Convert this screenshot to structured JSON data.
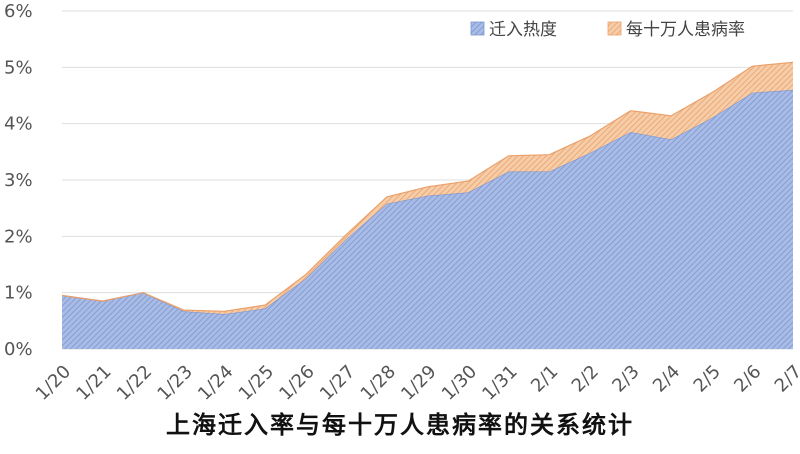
{
  "chart_data": {
    "type": "area",
    "stacked": true,
    "title": "上海迁入率与每十万人患病率的关系统计",
    "xlabel": "",
    "ylabel": "",
    "x": [
      "1/20",
      "1/21",
      "1/22",
      "1/23",
      "1/24",
      "1/25",
      "1/26",
      "1/27",
      "1/28",
      "1/29",
      "1/30",
      "1/31",
      "2/1",
      "2/2",
      "2/3",
      "2/4",
      "2/5",
      "2/6",
      "2/7"
    ],
    "y_ticks": [
      "0%",
      "1%",
      "2%",
      "3%",
      "4%",
      "5%",
      "6%"
    ],
    "ylim": [
      0,
      6
    ],
    "y_unit": "%",
    "grid": true,
    "legend_position": "top-right",
    "series": [
      {
        "name": "迁入热度",
        "color": "#8da5d8",
        "values": [
          0.95,
          0.85,
          1.0,
          0.67,
          0.62,
          0.72,
          1.25,
          1.95,
          2.58,
          2.72,
          2.78,
          3.15,
          3.15,
          3.48,
          3.85,
          3.72,
          4.1,
          4.55,
          4.6
        ]
      },
      {
        "name": "每十万人患病率",
        "color": "#f0b37e",
        "values": [
          0.0,
          0.0,
          0.0,
          0.02,
          0.05,
          0.06,
          0.07,
          0.08,
          0.12,
          0.16,
          0.2,
          0.28,
          0.3,
          0.3,
          0.38,
          0.42,
          0.45,
          0.47,
          0.49
        ]
      }
    ]
  }
}
